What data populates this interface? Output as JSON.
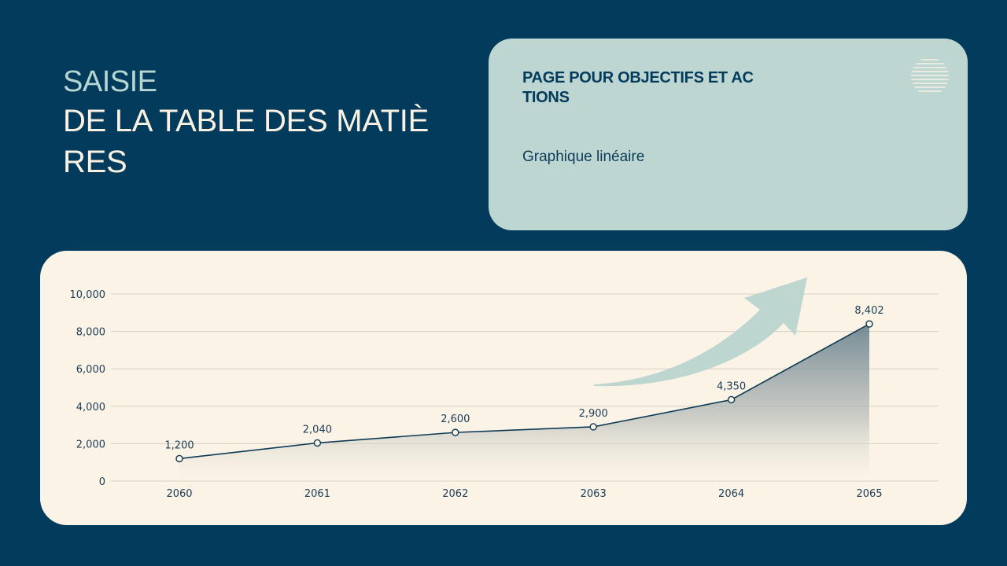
{
  "header": {
    "title_line1": "SAISIE",
    "title_line2": "DE LA TABLE DES MATIÈRES"
  },
  "info_card": {
    "heading": "PAGE POUR OBJECTIFS ET ACTIONS",
    "subtitle": "Graphique linéaire",
    "decoration_icon": "striped-circle-icon"
  },
  "colors": {
    "background": "#023b5c",
    "title_accent": "#b7d6d2",
    "title_text": "#fbf1e3",
    "card_teal": "#bed6d2",
    "chart_bg": "#fbf3e6",
    "line": "#0d3b55",
    "arrow": "#b9d4cf"
  },
  "chart_data": {
    "type": "area",
    "title": "",
    "xlabel": "",
    "ylabel": "",
    "categories": [
      "2060",
      "2061",
      "2062",
      "2063",
      "2064",
      "2065"
    ],
    "values": [
      1200,
      2040,
      2600,
      2900,
      4350,
      8402
    ],
    "value_labels": [
      "1,200",
      "2,040",
      "2,600",
      "2,900",
      "4,350",
      "8,402"
    ],
    "y_ticks": [
      0,
      2000,
      4000,
      6000,
      8000,
      10000
    ],
    "y_tick_labels": [
      "0",
      "2,000",
      "4,000",
      "6,000",
      "8,000",
      "10,000"
    ],
    "ylim": [
      0,
      10000
    ],
    "grid": true,
    "legend": "none",
    "annotations": [
      "upward trend arrow"
    ]
  }
}
